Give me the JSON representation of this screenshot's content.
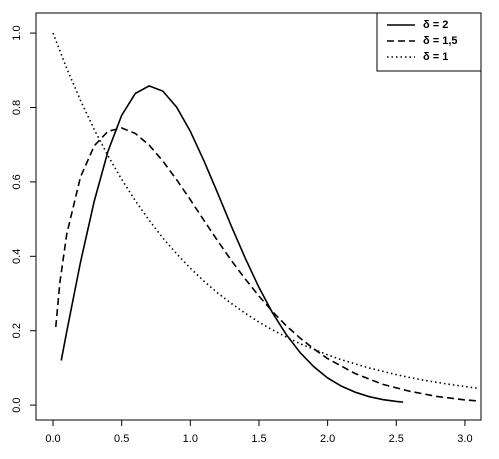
{
  "chart_data": {
    "type": "line",
    "series": [
      {
        "name": "δ = 2",
        "color": "#000000",
        "linestyle": "solid",
        "x": [
          0.06,
          0.1,
          0.2,
          0.3,
          0.4,
          0.5,
          0.6,
          0.7,
          0.8,
          0.9,
          1.0,
          1.1,
          1.2,
          1.3,
          1.4,
          1.5,
          1.6,
          1.7,
          1.8,
          1.9,
          2.0,
          2.1,
          2.2,
          2.3,
          2.4,
          2.5,
          2.55
        ],
        "values": [
          0.12,
          0.198,
          0.384,
          0.548,
          0.682,
          0.779,
          0.838,
          0.858,
          0.844,
          0.801,
          0.736,
          0.656,
          0.569,
          0.48,
          0.395,
          0.316,
          0.247,
          0.189,
          0.141,
          0.103,
          0.073,
          0.051,
          0.035,
          0.023,
          0.015,
          0.01,
          0.008
        ]
      },
      {
        "name": "δ = 1,5",
        "color": "#000000",
        "linestyle": "dashed",
        "x": [
          0.02,
          0.05,
          0.1,
          0.2,
          0.3,
          0.4,
          0.5,
          0.6,
          0.7,
          0.8,
          0.9,
          1.0,
          1.1,
          1.2,
          1.3,
          1.4,
          1.5,
          1.6,
          1.7,
          1.8,
          1.9,
          2.0,
          2.2,
          2.4,
          2.6,
          2.8,
          3.0,
          3.1
        ],
        "values": [
          0.21,
          0.33,
          0.46,
          0.613,
          0.697,
          0.736,
          0.745,
          0.73,
          0.699,
          0.656,
          0.606,
          0.552,
          0.496,
          0.441,
          0.388,
          0.339,
          0.293,
          0.251,
          0.213,
          0.18,
          0.151,
          0.125,
          0.085,
          0.056,
          0.037,
          0.023,
          0.014,
          0.011
        ]
      },
      {
        "name": "δ = 1",
        "color": "#000000",
        "linestyle": "dotted",
        "x": [
          0,
          0.1,
          0.2,
          0.3,
          0.4,
          0.5,
          0.6,
          0.7,
          0.8,
          0.9,
          1.0,
          1.1,
          1.2,
          1.3,
          1.4,
          1.5,
          1.6,
          1.7,
          1.8,
          1.9,
          2.0,
          2.1,
          2.2,
          2.3,
          2.4,
          2.5,
          2.6,
          2.7,
          2.8,
          2.9,
          3.0,
          3.1
        ],
        "values": [
          1,
          0.905,
          0.819,
          0.741,
          0.67,
          0.607,
          0.549,
          0.497,
          0.449,
          0.407,
          0.368,
          0.333,
          0.301,
          0.273,
          0.247,
          0.223,
          0.202,
          0.183,
          0.165,
          0.15,
          0.135,
          0.122,
          0.111,
          0.1,
          0.091,
          0.082,
          0.074,
          0.067,
          0.061,
          0.055,
          0.05,
          0.045
        ]
      }
    ],
    "xlim": [
      -0.124,
      3.117
    ],
    "ylim": [
      -0.04,
      1.054
    ],
    "xticks": [
      {
        "value": 0,
        "label": "0.0"
      },
      0.5,
      {
        "value": 1,
        "label": "1.0"
      },
      1.5,
      {
        "value": 2,
        "label": "2.0"
      },
      2.5,
      {
        "value": 3,
        "label": "3.0"
      }
    ],
    "yticks": [
      {
        "value": 0,
        "label": "0.0"
      },
      0.2,
      0.4,
      0.6,
      0.8,
      {
        "value": 1,
        "label": "1.0"
      }
    ],
    "grid": false,
    "legend": "top-right"
  }
}
